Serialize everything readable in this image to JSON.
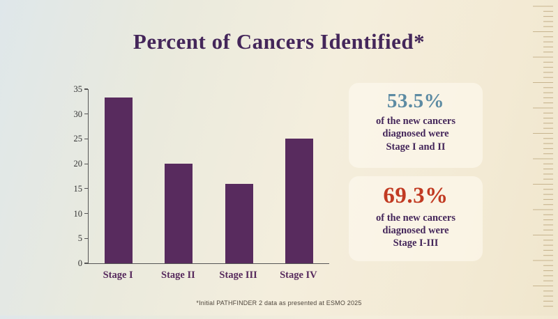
{
  "title": "Percent of Cancers Identified*",
  "chart_data": {
    "type": "bar",
    "categories": [
      "Stage I",
      "Stage II",
      "Stage III",
      "Stage IV"
    ],
    "values": [
      33.3,
      20,
      16,
      25
    ],
    "title": "Percent of Cancers Identified*",
    "xlabel": "",
    "ylabel": "",
    "ylim": [
      0,
      35
    ],
    "yticks": [
      0,
      5,
      10,
      15,
      20,
      25,
      30,
      35
    ],
    "bar_color": "#582b5e",
    "grid": false,
    "legend": false
  },
  "stats": [
    {
      "value": "53.5%",
      "color": "#5d8ba3",
      "line1": "of the new cancers",
      "line2": "diagnosed were",
      "line3": "Stage I and II"
    },
    {
      "value": "69.3%",
      "color": "#c13a22",
      "line1": "of the new cancers",
      "line2": "diagnosed were",
      "line3": "Stage I-III"
    }
  ],
  "footnote": "*Initial PATHFINDER 2 data as presented at ESMO 2025",
  "colors": {
    "title": "#44265a",
    "bar": "#582b5e",
    "stat_teal": "#5d8ba3",
    "stat_red": "#c13a22",
    "ruler_tick": "#c7b48e"
  }
}
